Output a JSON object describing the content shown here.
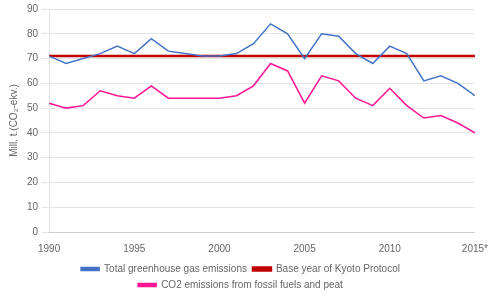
{
  "chart_data": {
    "type": "line",
    "y_label": "Mill. t.(CO₂-ekv.)",
    "x": [
      1990,
      1991,
      1992,
      1993,
      1994,
      1995,
      1996,
      1997,
      1998,
      1999,
      2000,
      2001,
      2002,
      2003,
      2004,
      2005,
      2006,
      2007,
      2008,
      2009,
      2010,
      2011,
      2012,
      2013,
      2014,
      2015
    ],
    "xlim": [
      1990,
      2015
    ],
    "xticks": [
      1990,
      1995,
      2000,
      2005,
      2010,
      {
        "value": 2015,
        "label": "2015*"
      }
    ],
    "ylim": [
      0,
      90
    ],
    "yticks": [
      0,
      10,
      20,
      30,
      40,
      50,
      60,
      70,
      80,
      90
    ],
    "grid": true,
    "legend": "bottom",
    "series": [
      {
        "name": "Total greenhouse gas emissions",
        "color": "#4472C4",
        "values": [
          71,
          68,
          70,
          72,
          75,
          72,
          78,
          73,
          72,
          71,
          71,
          72,
          76,
          84,
          80,
          70,
          80,
          79,
          72,
          68,
          75,
          72,
          61,
          63,
          60,
          55
        ]
      },
      {
        "name": "Base year of Kyoto Protocol",
        "color": "#C00000",
        "type": "hline",
        "value": 71
      },
      {
        "name": "CO2 emissions from fossil fuels and peat",
        "color": "#FF1493",
        "values": [
          52,
          50,
          51,
          57,
          55,
          54,
          59,
          54,
          54,
          54,
          54,
          55,
          59,
          68,
          65,
          52,
          63,
          61,
          54,
          51,
          58,
          51,
          46,
          47,
          44,
          40
        ]
      }
    ]
  }
}
